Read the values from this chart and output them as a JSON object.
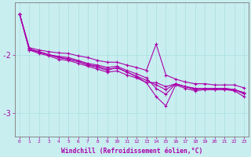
{
  "x": [
    0,
    1,
    2,
    3,
    4,
    5,
    6,
    7,
    8,
    9,
    10,
    11,
    12,
    13,
    14,
    15,
    16,
    17,
    18,
    19,
    20,
    21,
    22,
    23
  ],
  "lines": [
    [
      -1.3,
      -1.88,
      -1.92,
      -1.95,
      -1.97,
      -1.98,
      -2.02,
      -2.05,
      -2.1,
      -2.13,
      -2.13,
      -2.18,
      -2.22,
      -2.27,
      -1.82,
      -2.35,
      -2.42,
      -2.47,
      -2.5,
      -2.5,
      -2.52,
      -2.52,
      -2.52,
      -2.57
    ],
    [
      -1.3,
      -1.92,
      -1.95,
      -2.0,
      -2.05,
      -2.08,
      -2.12,
      -2.18,
      -2.22,
      -2.27,
      -2.22,
      -2.3,
      -2.38,
      -2.48,
      -2.72,
      -2.88,
      -2.52,
      -2.58,
      -2.62,
      -2.6,
      -2.6,
      -2.6,
      -2.62,
      -2.72
    ],
    [
      -1.3,
      -1.92,
      -1.98,
      -2.02,
      -2.08,
      -2.1,
      -2.15,
      -2.2,
      -2.25,
      -2.3,
      -2.28,
      -2.35,
      -2.4,
      -2.48,
      -2.48,
      -2.55,
      -2.5,
      -2.55,
      -2.6,
      -2.6,
      -2.6,
      -2.6,
      -2.6,
      -2.65
    ],
    [
      -1.3,
      -1.9,
      -1.95,
      -2.0,
      -2.03,
      -2.05,
      -2.1,
      -2.15,
      -2.18,
      -2.22,
      -2.2,
      -2.27,
      -2.33,
      -2.4,
      -2.58,
      -2.68,
      -2.5,
      -2.55,
      -2.58,
      -2.58,
      -2.58,
      -2.58,
      -2.6,
      -2.67
    ],
    [
      -1.3,
      -1.9,
      -1.96,
      -2.0,
      -2.05,
      -2.07,
      -2.12,
      -2.17,
      -2.2,
      -2.25,
      -2.23,
      -2.3,
      -2.37,
      -2.44,
      -2.52,
      -2.6,
      -2.5,
      -2.55,
      -2.58,
      -2.58,
      -2.58,
      -2.58,
      -2.6,
      -2.67
    ]
  ],
  "line_color": "#aa00aa",
  "marker": "+",
  "markersize": 3,
  "linewidth": 0.8,
  "background_color": "#c8eef0",
  "grid_color": "#b0d8da",
  "axis_color": "#888888",
  "tick_color": "#aa00aa",
  "label_color": "#aa00aa",
  "xlabel": "Windchill (Refroidissement éolien,°C)",
  "yticks": [
    -2,
    -3
  ],
  "ylim": [
    -3.4,
    -1.1
  ],
  "xlim": [
    -0.5,
    23.5
  ],
  "xtick_labels": [
    "0",
    "1",
    "2",
    "3",
    "4",
    "5",
    "6",
    "7",
    "8",
    "9",
    "10",
    "11",
    "12",
    "13",
    "14",
    "15",
    "16",
    "17",
    "18",
    "19",
    "20",
    "21",
    "22",
    "23"
  ]
}
